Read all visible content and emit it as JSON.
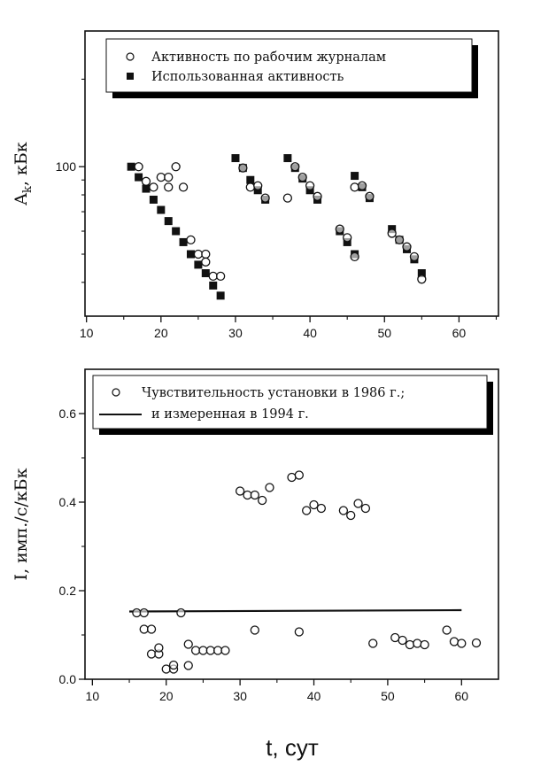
{
  "chart_data": [
    {
      "type": "scatter",
      "yscale": "log",
      "xlabel": "",
      "ylabel": "A",
      "ylabel_sub": "k",
      "ylabel_unit": ", кБк",
      "xlim": [
        9.8,
        65.3
      ],
      "ylim": [
        30.6,
        293
      ],
      "x_ticks": [
        10,
        20,
        30,
        40,
        50,
        60
      ],
      "x_tick_labels": [
        "10",
        "20",
        "30",
        "40",
        "50",
        "60"
      ],
      "y_ticks": [
        100
      ],
      "y_tick_labels": [
        "100"
      ],
      "y_minor_ticks": [
        40,
        50,
        60,
        70,
        80,
        90,
        200
      ],
      "legend_position": "top",
      "series": [
        {
          "name": "Активность по рабочим журналам",
          "marker": "open-circle",
          "x": [
            17,
            18,
            19,
            20,
            21,
            21,
            22,
            23,
            24,
            25,
            26,
            26,
            27,
            28,
            31,
            32,
            33,
            34,
            37,
            38,
            39,
            40,
            41,
            44,
            45,
            46,
            46,
            47,
            48,
            51,
            52,
            53,
            54,
            55
          ],
          "y": [
            100,
            89,
            85,
            92,
            92,
            85,
            100,
            85,
            56,
            50,
            50,
            47,
            42,
            42,
            99,
            85,
            86,
            78,
            78,
            100,
            92,
            86,
            79,
            61,
            57,
            49,
            85,
            86,
            79,
            59,
            56,
            53,
            49,
            41
          ]
        },
        {
          "name": "Использованная активность",
          "marker": "filled-square",
          "x": [
            16,
            17,
            18,
            19,
            20,
            21,
            22,
            23,
            24,
            25,
            26,
            27,
            28,
            30,
            31,
            32,
            33,
            34,
            37,
            38,
            39,
            40,
            41,
            44,
            45,
            46,
            46,
            47,
            48,
            51,
            52,
            53,
            54,
            55
          ],
          "y": [
            100,
            92,
            84,
            77,
            71,
            65,
            60,
            55,
            50,
            46,
            43,
            39,
            36,
            107,
            99,
            90,
            83,
            77,
            107,
            99,
            91,
            83,
            77,
            60,
            55,
            50,
            93,
            85,
            78,
            61,
            56,
            52,
            48,
            43
          ]
        }
      ]
    },
    {
      "type": "scatter",
      "xlabel": "t, сут",
      "ylabel": "I, имп./с/кБк",
      "xlim": [
        9.0,
        65.0
      ],
      "ylim": [
        0,
        0.7
      ],
      "x_ticks": [
        10,
        20,
        30,
        40,
        50,
        60
      ],
      "x_tick_labels": [
        "10",
        "20",
        "30",
        "40",
        "50",
        "60"
      ],
      "y_ticks": [
        0.0,
        0.2,
        0.4,
        0.6
      ],
      "y_tick_labels": [
        "0.0",
        "0.2",
        "0.4",
        "0.6"
      ],
      "y_minor_ticks": [
        0.1,
        0.3,
        0.5
      ],
      "legend_position": "top",
      "series": [
        {
          "name": "Чувствительность установки в 1986 г.;",
          "marker": "open-circle",
          "x": [
            16,
            17,
            17,
            18,
            18,
            19,
            19,
            20,
            21,
            21,
            22,
            23,
            23,
            24,
            25,
            26,
            27,
            28,
            30,
            31,
            32,
            33,
            34,
            32,
            37,
            38,
            38,
            39,
            40,
            41,
            44,
            45,
            46,
            47,
            48,
            51,
            52,
            53,
            54,
            55,
            58,
            59,
            60,
            62
          ],
          "y": [
            0.15,
            0.15,
            0.113,
            0.113,
            0.057,
            0.057,
            0.071,
            0.023,
            0.023,
            0.032,
            0.15,
            0.079,
            0.031,
            0.065,
            0.065,
            0.065,
            0.065,
            0.065,
            0.425,
            0.416,
            0.416,
            0.404,
            0.433,
            0.111,
            0.456,
            0.461,
            0.107,
            0.381,
            0.394,
            0.386,
            0.381,
            0.37,
            0.397,
            0.386,
            0.081,
            0.094,
            0.088,
            0.078,
            0.081,
            0.078,
            0.111,
            0.085,
            0.081,
            0.082
          ]
        },
        {
          "name": "и измеренная в 1994 г.",
          "marker": "line",
          "x": [
            15,
            60
          ],
          "y": [
            0.153,
            0.156
          ]
        }
      ]
    }
  ]
}
